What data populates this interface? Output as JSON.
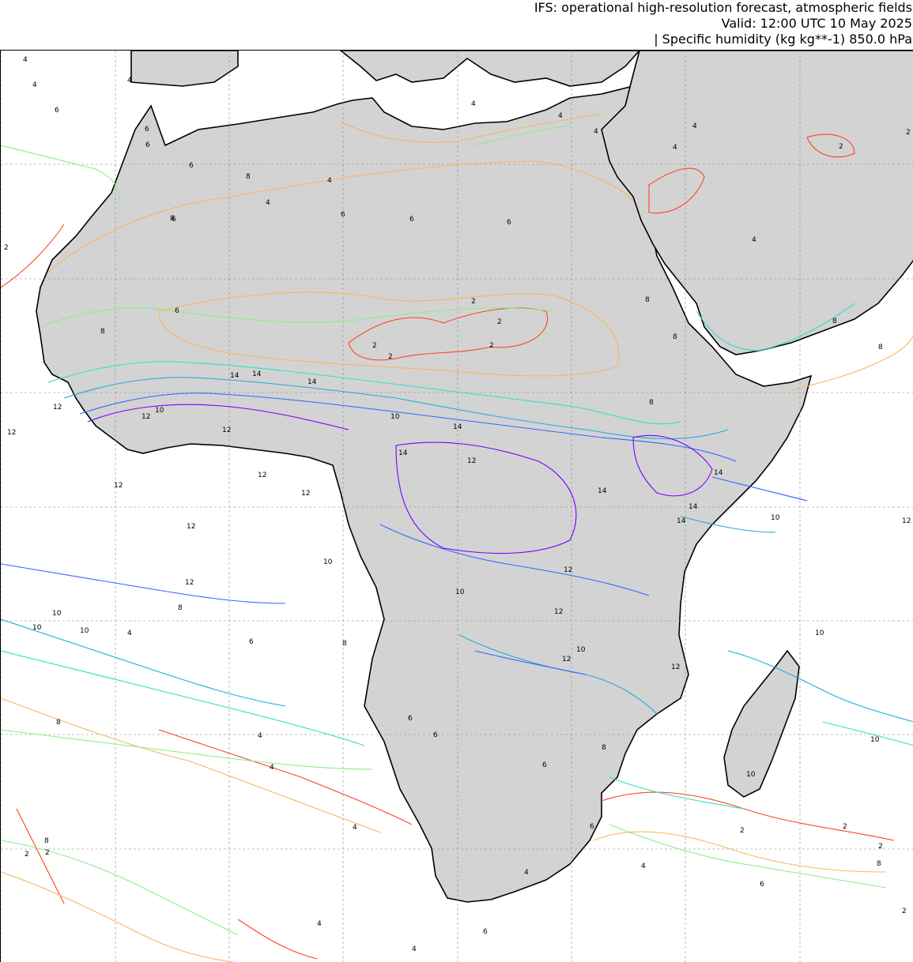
{
  "title": {
    "line1": "IFS: operational high-resolution forecast, atmospheric fields",
    "line2": "Valid: 12:00 UTC 10 May 2025",
    "line3": "| Specific humidity (kg kg**-1) 850.0 hPa"
  },
  "map": {
    "land_color": "#d3d3d3",
    "ocean_color": "#ffffff",
    "coast_color": "#000000",
    "grid_color": "#888888",
    "contour_colors": {
      "2": "#ff4422",
      "4": "#f4b860",
      "6": "#88ee88",
      "8": "#33ddcc",
      "10": "#22aadd",
      "12": "#3366ff",
      "14": "#7700ff"
    },
    "contour_labels": [
      "2",
      "4",
      "6",
      "8",
      "10",
      "12",
      "14"
    ]
  }
}
